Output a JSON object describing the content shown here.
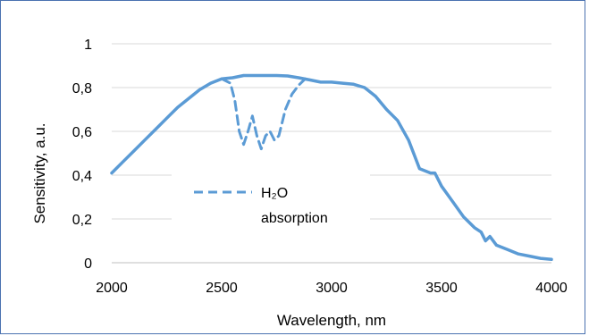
{
  "colors": {
    "series": "#5b9bd5",
    "grid": "#d9d9d9",
    "frame": "#4a72b0"
  },
  "chart_data": {
    "type": "line",
    "xlabel": "Wavelength, nm",
    "ylabel": "Sensitivity, a.u.",
    "xlim": [
      2000,
      4000
    ],
    "ylim": [
      0,
      1
    ],
    "xticks": [
      "2000",
      "2500",
      "3000",
      "3500",
      "4000"
    ],
    "yticks": [
      "0",
      "0,2",
      "0,4",
      "0,6",
      "0,8",
      "1"
    ],
    "grid": "horizontal",
    "legend_position": "inside-left",
    "series": [
      {
        "style": "solid",
        "points": [
          [
            2000,
            0.41
          ],
          [
            2050,
            0.46
          ],
          [
            2100,
            0.51
          ],
          [
            2150,
            0.56
          ],
          [
            2200,
            0.61
          ],
          [
            2250,
            0.66
          ],
          [
            2300,
            0.71
          ],
          [
            2350,
            0.75
          ],
          [
            2400,
            0.79
          ],
          [
            2450,
            0.82
          ],
          [
            2500,
            0.84
          ],
          [
            2550,
            0.845
          ],
          [
            2600,
            0.855
          ],
          [
            2650,
            0.855
          ],
          [
            2700,
            0.855
          ],
          [
            2750,
            0.855
          ],
          [
            2800,
            0.853
          ],
          [
            2850,
            0.845
          ],
          [
            2900,
            0.835
          ],
          [
            2950,
            0.825
          ],
          [
            3000,
            0.825
          ],
          [
            3050,
            0.82
          ],
          [
            3100,
            0.815
          ],
          [
            3150,
            0.8
          ],
          [
            3200,
            0.76
          ],
          [
            3250,
            0.7
          ],
          [
            3300,
            0.65
          ],
          [
            3350,
            0.56
          ],
          [
            3400,
            0.43
          ],
          [
            3450,
            0.41
          ],
          [
            3470,
            0.41
          ],
          [
            3500,
            0.35
          ],
          [
            3550,
            0.28
          ],
          [
            3600,
            0.21
          ],
          [
            3650,
            0.16
          ],
          [
            3680,
            0.14
          ],
          [
            3700,
            0.1
          ],
          [
            3720,
            0.12
          ],
          [
            3750,
            0.08
          ],
          [
            3800,
            0.06
          ],
          [
            3850,
            0.04
          ],
          [
            3900,
            0.03
          ],
          [
            3950,
            0.02
          ],
          [
            4000,
            0.015
          ]
        ]
      },
      {
        "name": "H₂O absorption",
        "style": "dashed",
        "points": [
          [
            2500,
            0.84
          ],
          [
            2540,
            0.82
          ],
          [
            2560,
            0.74
          ],
          [
            2580,
            0.6
          ],
          [
            2600,
            0.54
          ],
          [
            2620,
            0.6
          ],
          [
            2640,
            0.67
          ],
          [
            2660,
            0.58
          ],
          [
            2680,
            0.52
          ],
          [
            2700,
            0.58
          ],
          [
            2720,
            0.6
          ],
          [
            2740,
            0.56
          ],
          [
            2760,
            0.58
          ],
          [
            2790,
            0.7
          ],
          [
            2820,
            0.77
          ],
          [
            2850,
            0.81
          ],
          [
            2880,
            0.84
          ]
        ]
      }
    ],
    "legend": {
      "line1": "H₂O",
      "line2": "absorption"
    }
  }
}
